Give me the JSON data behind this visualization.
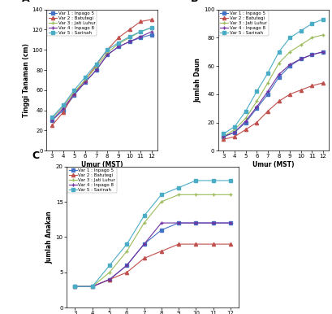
{
  "x": [
    3,
    4,
    5,
    6,
    7,
    8,
    9,
    10,
    11,
    12
  ],
  "varieties": [
    "Var 1 : Inpago 5",
    "Var 2 : Batutegi",
    "Var 3 : Jati Luhur",
    "Var 4 : Inpago 8",
    "Var 5 : Sarinah"
  ],
  "colors": [
    "#4472c4",
    "#c0504d",
    "#9bbb59",
    "#7030a0",
    "#4bacc6"
  ],
  "markers": [
    "s",
    "^",
    "+",
    "+",
    "s"
  ],
  "tinggi_tanaman": [
    [
      30,
      40,
      55,
      68,
      80,
      95,
      103,
      108,
      112,
      115
    ],
    [
      25,
      38,
      57,
      70,
      85,
      100,
      112,
      120,
      128,
      130
    ],
    [
      32,
      44,
      58,
      70,
      83,
      97,
      106,
      112,
      118,
      122
    ],
    [
      30,
      42,
      56,
      68,
      80,
      95,
      103,
      108,
      113,
      118
    ],
    [
      33,
      45,
      60,
      73,
      86,
      100,
      107,
      113,
      118,
      122
    ]
  ],
  "jumlah_daun": [
    [
      10,
      13,
      20,
      30,
      40,
      52,
      60,
      65,
      68,
      70
    ],
    [
      8,
      10,
      15,
      20,
      28,
      35,
      40,
      43,
      46,
      48
    ],
    [
      10,
      15,
      23,
      35,
      48,
      62,
      70,
      75,
      80,
      82
    ],
    [
      10,
      13,
      21,
      31,
      42,
      54,
      61,
      65,
      68,
      70
    ],
    [
      12,
      17,
      28,
      42,
      55,
      70,
      80,
      85,
      90,
      93
    ]
  ],
  "jumlah_anakan": [
    [
      3,
      3,
      4,
      6,
      9,
      11,
      12,
      12,
      12,
      12
    ],
    [
      3,
      3,
      4,
      5,
      7,
      8,
      9,
      9,
      9,
      9
    ],
    [
      3,
      3,
      5,
      8,
      12,
      15,
      16,
      16,
      16,
      16
    ],
    [
      3,
      3,
      4,
      6,
      9,
      12,
      12,
      12,
      12,
      12
    ],
    [
      3,
      3,
      6,
      9,
      13,
      16,
      17,
      18,
      18,
      18
    ]
  ],
  "ylim_A": [
    0,
    140
  ],
  "ylim_B": [
    0,
    100
  ],
  "ylim_C": [
    0,
    20
  ],
  "yticks_A": [
    0,
    20,
    40,
    60,
    80,
    100,
    120,
    140
  ],
  "yticks_B": [
    0,
    20,
    40,
    60,
    80,
    100
  ],
  "yticks_C": [
    0,
    5,
    10,
    15,
    20
  ],
  "xlabel": "Umur (MST)",
  "ylabel_A": "Tinggi Tanaman (cm)",
  "ylabel_B": "Jumlah Daun",
  "ylabel_C": "Jumlah Anakan",
  "background_color": "#ffffff",
  "label_A": "A",
  "label_B": "B",
  "label_C": "C"
}
